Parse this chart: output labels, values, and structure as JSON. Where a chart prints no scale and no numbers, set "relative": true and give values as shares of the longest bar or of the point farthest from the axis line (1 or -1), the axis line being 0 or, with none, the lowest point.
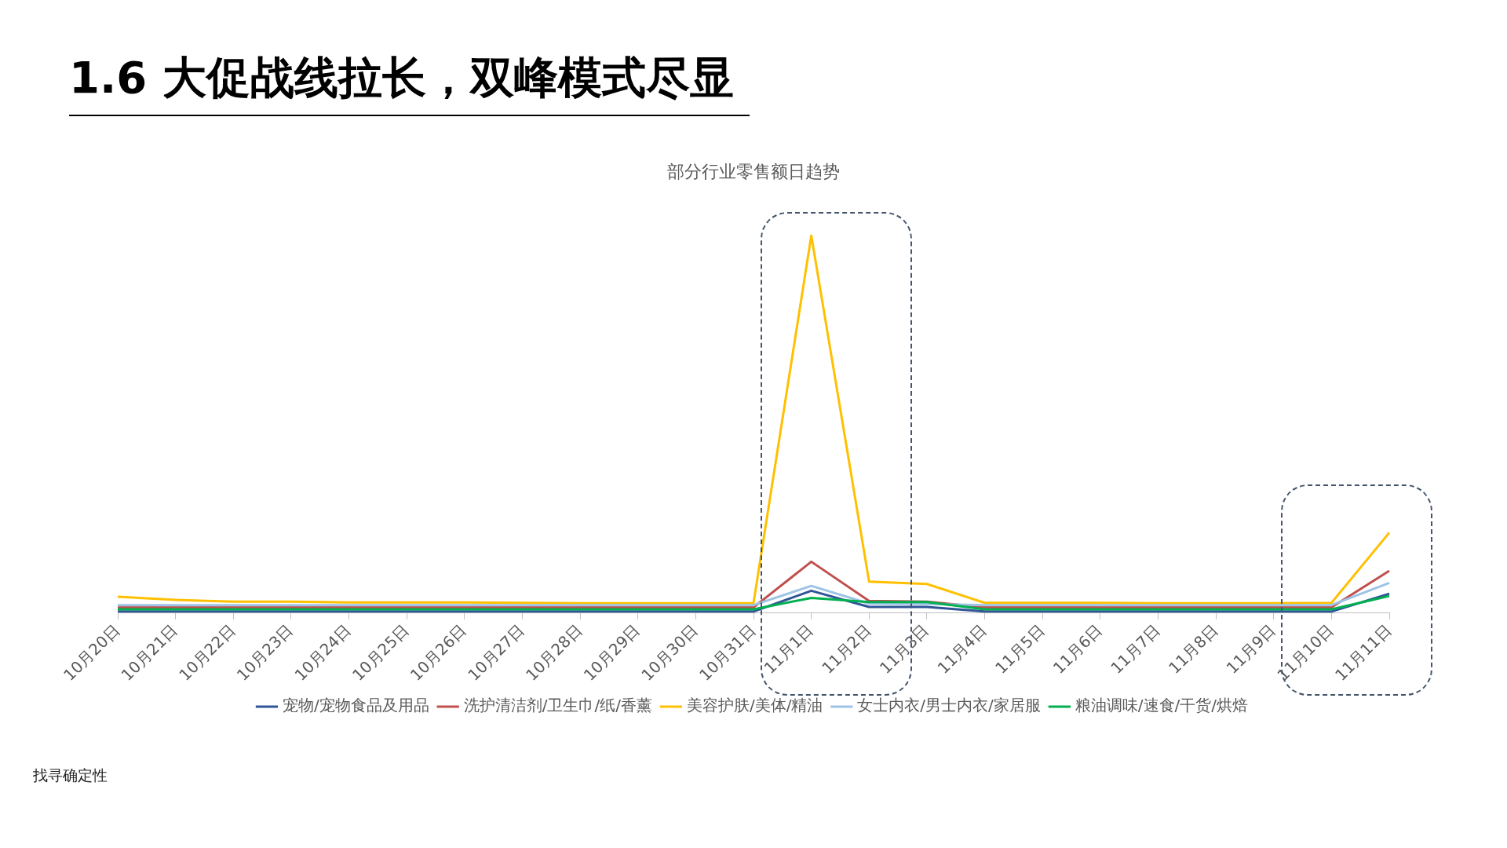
{
  "chart_data": {
    "type": "line",
    "title": "1.6 大促战线拉长，双峰模式尽显",
    "subtitle": "部分行业零售额日趋势",
    "relative": true,
    "legend": "bottom",
    "marker": "none",
    "line_style": "solid",
    "categories": [
      "10月20日",
      "10月21日",
      "10月22日",
      "10月23日",
      "10月24日",
      "10月25日",
      "10月26日",
      "10月27日",
      "10月28日",
      "10月29日",
      "10月30日",
      "10月31日",
      "11月1日",
      "11月2日",
      "11月3日",
      "11月4日",
      "11月5日",
      "11月6日",
      "11月7日",
      "11月8日",
      "11月9日",
      "11月10日",
      "11月11日"
    ],
    "series": [
      {
        "name": "宠物/宠物食品及用品",
        "color": "#2f5597",
        "values": [
          0.004,
          0.004,
          0.004,
          0.004,
          0.004,
          0.004,
          0.004,
          0.004,
          0.004,
          0.004,
          0.004,
          0.004,
          0.059,
          0.016,
          0.016,
          0.004,
          0.004,
          0.004,
          0.004,
          0.004,
          0.004,
          0.004,
          0.051
        ]
      },
      {
        "name": "洗护清洁剂/卫生巾/纸/香薰",
        "color": "#c0504d",
        "values": [
          0.015,
          0.015,
          0.015,
          0.015,
          0.015,
          0.015,
          0.015,
          0.015,
          0.015,
          0.015,
          0.015,
          0.015,
          0.136,
          0.032,
          0.03,
          0.015,
          0.015,
          0.015,
          0.015,
          0.015,
          0.015,
          0.015,
          0.112
        ]
      },
      {
        "name": "美容护肤/美体/精油",
        "color": "#ffc000",
        "values": [
          0.043,
          0.035,
          0.03,
          0.03,
          0.028,
          0.028,
          0.028,
          0.027,
          0.026,
          0.026,
          0.026,
          0.026,
          1,
          0.083,
          0.077,
          0.027,
          0.027,
          0.027,
          0.026,
          0.026,
          0.026,
          0.027,
          0.213
        ]
      },
      {
        "name": "女士内衣/男士内衣/家居服",
        "color": "#9dc3e6",
        "values": [
          0.021,
          0.021,
          0.021,
          0.021,
          0.021,
          0.021,
          0.021,
          0.021,
          0.021,
          0.021,
          0.021,
          0.021,
          0.072,
          0.025,
          0.024,
          0.021,
          0.021,
          0.021,
          0.021,
          0.021,
          0.021,
          0.021,
          0.08
        ]
      },
      {
        "name": "粮油调味/速食/干货/烘焙",
        "color": "#00b050",
        "values": [
          0.01,
          0.01,
          0.01,
          0.01,
          0.01,
          0.01,
          0.01,
          0.01,
          0.01,
          0.01,
          0.01,
          0.01,
          0.04,
          0.029,
          0.029,
          0.01,
          0.01,
          0.01,
          0.01,
          0.01,
          0.01,
          0.01,
          0.045
        ]
      }
    ],
    "annotations": [
      "找寻确定性"
    ]
  }
}
